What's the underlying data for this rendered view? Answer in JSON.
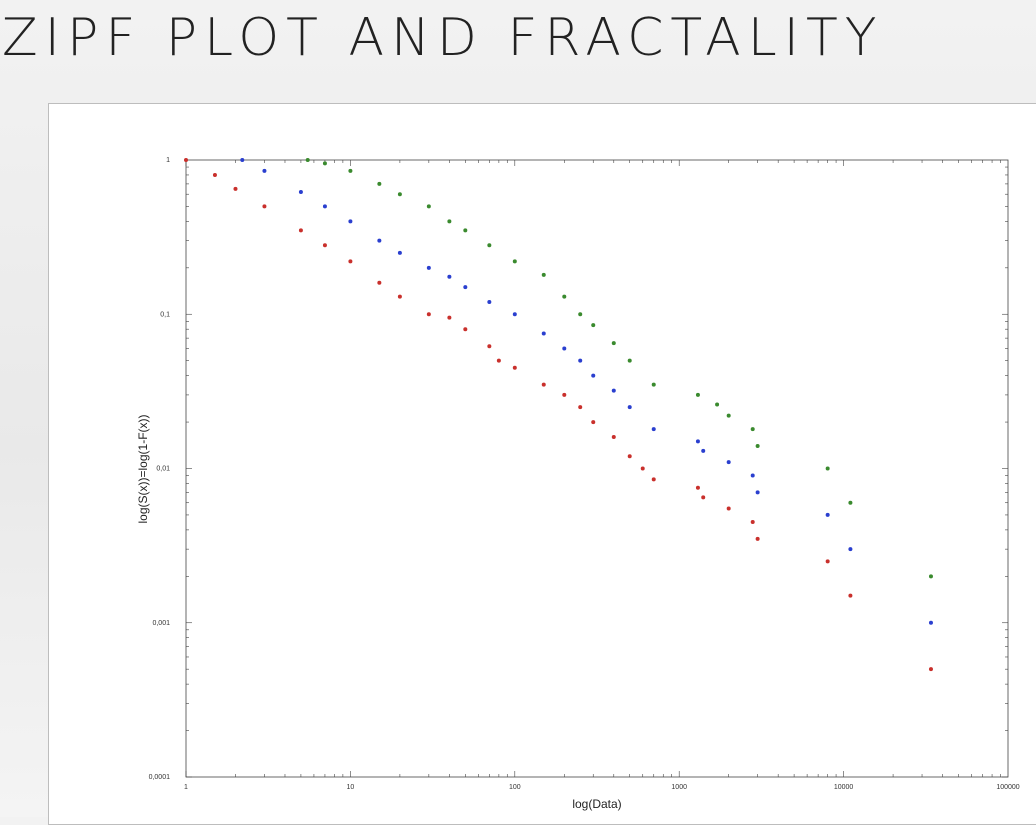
{
  "slide": {
    "title": "ZIPF PLOT AND FRACTALITY"
  },
  "chart_data": {
    "type": "scatter",
    "xscale": "log",
    "yscale": "log",
    "xlim": [
      1,
      100000
    ],
    "ylim": [
      0.0001,
      1
    ],
    "xlabel": "log(Data)",
    "ylabel": "log(S(x))=log(1-F(x))",
    "xticks": [
      "1",
      "10",
      "100",
      "1000",
      "10000",
      "100000"
    ],
    "yticks": [
      "1",
      "0,1",
      "0,01",
      "0,001",
      "0,0001"
    ],
    "grid": false,
    "legend": "none",
    "series": [
      {
        "color": "#c9302c",
        "points": [
          [
            1,
            1
          ],
          [
            1.5,
            0.8
          ],
          [
            2,
            0.65
          ],
          [
            3,
            0.5
          ],
          [
            5,
            0.35
          ],
          [
            7,
            0.28
          ],
          [
            10,
            0.22
          ],
          [
            15,
            0.16
          ],
          [
            20,
            0.13
          ],
          [
            30,
            0.1
          ],
          [
            40,
            0.095
          ],
          [
            50,
            0.08
          ],
          [
            70,
            0.062
          ],
          [
            80,
            0.05
          ],
          [
            100,
            0.045
          ],
          [
            150,
            0.035
          ],
          [
            200,
            0.03
          ],
          [
            250,
            0.025
          ],
          [
            300,
            0.02
          ],
          [
            400,
            0.016
          ],
          [
            500,
            0.012
          ],
          [
            600,
            0.01
          ],
          [
            700,
            0.0085
          ],
          [
            1300,
            0.0075
          ],
          [
            1400,
            0.0065
          ],
          [
            2000,
            0.0055
          ],
          [
            2800,
            0.0045
          ],
          [
            3000,
            0.0035
          ],
          [
            8000,
            0.0025
          ],
          [
            11000,
            0.0015
          ],
          [
            34000,
            0.0005
          ]
        ]
      },
      {
        "color": "#2a3fcf",
        "points": [
          [
            2.2,
            1
          ],
          [
            3,
            0.85
          ],
          [
            5,
            0.62
          ],
          [
            7,
            0.5
          ],
          [
            10,
            0.4
          ],
          [
            15,
            0.3
          ],
          [
            20,
            0.25
          ],
          [
            30,
            0.2
          ],
          [
            40,
            0.175
          ],
          [
            50,
            0.15
          ],
          [
            70,
            0.12
          ],
          [
            100,
            0.1
          ],
          [
            150,
            0.075
          ],
          [
            200,
            0.06
          ],
          [
            250,
            0.05
          ],
          [
            300,
            0.04
          ],
          [
            400,
            0.032
          ],
          [
            500,
            0.025
          ],
          [
            700,
            0.018
          ],
          [
            1300,
            0.015
          ],
          [
            1400,
            0.013
          ],
          [
            2000,
            0.011
          ],
          [
            2800,
            0.009
          ],
          [
            3000,
            0.007
          ],
          [
            8000,
            0.005
          ],
          [
            11000,
            0.003
          ],
          [
            34000,
            0.001
          ]
        ]
      },
      {
        "color": "#3a8a2e",
        "points": [
          [
            5.5,
            1
          ],
          [
            7,
            0.95
          ],
          [
            10,
            0.85
          ],
          [
            15,
            0.7
          ],
          [
            20,
            0.6
          ],
          [
            30,
            0.5
          ],
          [
            40,
            0.4
          ],
          [
            50,
            0.35
          ],
          [
            70,
            0.28
          ],
          [
            100,
            0.22
          ],
          [
            150,
            0.18
          ],
          [
            200,
            0.13
          ],
          [
            250,
            0.1
          ],
          [
            300,
            0.085
          ],
          [
            400,
            0.065
          ],
          [
            500,
            0.05
          ],
          [
            700,
            0.035
          ],
          [
            1300,
            0.03
          ],
          [
            1700,
            0.026
          ],
          [
            2000,
            0.022
          ],
          [
            2800,
            0.018
          ],
          [
            3000,
            0.014
          ],
          [
            8000,
            0.01
          ],
          [
            11000,
            0.006
          ],
          [
            34000,
            0.002
          ]
        ]
      }
    ]
  }
}
